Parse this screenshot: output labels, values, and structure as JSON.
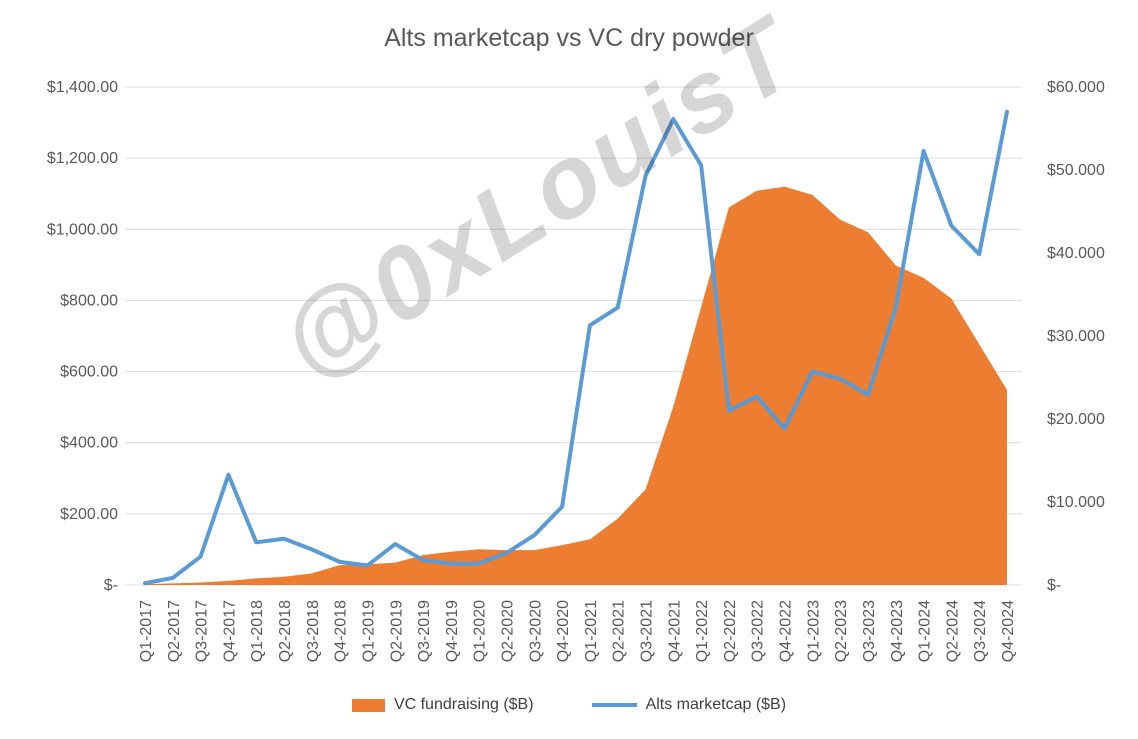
{
  "chart": {
    "title": "Alts marketcap vs VC dry powder",
    "watermark": "@0xLouisT"
  },
  "legend": {
    "items": [
      {
        "label": "VC fundraising ($B)",
        "swatch": "area-rect",
        "color": "#ED7D31"
      },
      {
        "label": "Alts marketcap ($B)",
        "swatch": "line",
        "color": "#5B9BD5"
      }
    ]
  },
  "chart_data": {
    "type": "combo",
    "title": "Alts marketcap vs VC dry powder",
    "legend_position": "bottom",
    "gridlines": "horizontal",
    "categories": [
      "Q1-2017",
      "Q2-2017",
      "Q3-2017",
      "Q4-2017",
      "Q1-2018",
      "Q2-2018",
      "Q3-2018",
      "Q4-2018",
      "Q1-2019",
      "Q2-2019",
      "Q3-2019",
      "Q4-2019",
      "Q1-2020",
      "Q2-2020",
      "Q3-2020",
      "Q4-2020",
      "Q1-2021",
      "Q2-2021",
      "Q3-2021",
      "Q4-2021",
      "Q1-2022",
      "Q2-2022",
      "Q3-2022",
      "Q4-2022",
      "Q1-2023",
      "Q2-2023",
      "Q3-2023",
      "Q4-2023",
      "Q1-2024",
      "Q2-2024",
      "Q3-2024",
      "Q4-2024"
    ],
    "series": [
      {
        "name": "VC fundraising ($B)",
        "chart_type": "area",
        "axis": "right",
        "color": "#ED7D31",
        "values": [
          0.1,
          0.2,
          0.3,
          0.5,
          0.8,
          1.0,
          1.4,
          2.4,
          2.5,
          2.7,
          3.6,
          4.0,
          4.3,
          4.2,
          4.2,
          4.8,
          5.5,
          8.0,
          11.5,
          21.5,
          33.5,
          45.5,
          47.5,
          48.0,
          47.0,
          44.0,
          42.5,
          38.5,
          37.0,
          34.5,
          29.0,
          23.5
        ]
      },
      {
        "name": "Alts marketcap ($B)",
        "chart_type": "line",
        "axis": "left",
        "color": "#5B9BD5",
        "values": [
          5,
          20,
          80,
          310,
          120,
          130,
          100,
          65,
          55,
          115,
          70,
          60,
          60,
          90,
          140,
          220,
          730,
          780,
          1150,
          1310,
          1180,
          490,
          530,
          440,
          600,
          580,
          535,
          780,
          1220,
          1010,
          930,
          1330
        ]
      }
    ],
    "left_axis": {
      "min": 0,
      "max": 1400,
      "tick_values": [
        1400,
        1200,
        1000,
        800,
        600,
        400,
        200,
        0
      ],
      "tick_labels": [
        "$1,400.00",
        "$1,200.00",
        "$1,000.00",
        "$800.00",
        "$600.00",
        "$400.00",
        "$200.00",
        "$-"
      ]
    },
    "right_axis": {
      "min": 0,
      "max": 60,
      "tick_values": [
        60,
        50,
        40,
        30,
        20,
        10,
        0
      ],
      "tick_labels": [
        "$60.000",
        "$50.000",
        "$40.000",
        "$30.000",
        "$20.000",
        "$10.000",
        "$-"
      ]
    },
    "colors": {
      "gridline": "#DCDCDC",
      "axis_text": "#595959",
      "title_text": "#595959",
      "legend_text": "#404040",
      "watermark_text": "#C9C9C9",
      "area": "#ED7D31",
      "line": "#5B9BD5"
    }
  }
}
